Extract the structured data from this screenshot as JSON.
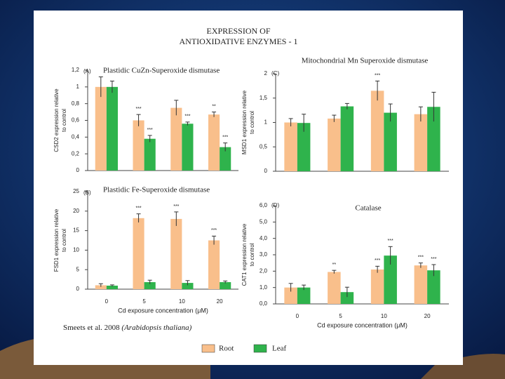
{
  "title": [
    "EXPRESSION OF",
    "ANTIOXIDATIVE ENZYMES - 1"
  ],
  "citation": "Smeets et al. 2008",
  "species": "(Arabidopsis thaliana)",
  "chart_data": [
    {
      "type": "bar",
      "label": "(A)",
      "title": "Plastidic CuZn-Superoxide dismutase",
      "ylabel": [
        "CSD2 expression relative",
        "to control"
      ],
      "categories": [
        null,
        null,
        null,
        null
      ],
      "ylim": [
        0,
        1.2
      ],
      "yticks": [
        0,
        {
          "value": 0.2,
          "label": "0,2"
        },
        {
          "value": 0.4,
          "label": "0,4"
        },
        {
          "value": 0.6,
          "label": "0,6"
        },
        {
          "value": 0.8,
          "label": "0,8"
        },
        1,
        {
          "value": 1.2,
          "label": "1,2"
        }
      ],
      "series": [
        {
          "name": "Root",
          "color": "#f9bf8b",
          "values": [
            1,
            0.6,
            0.75,
            0.67
          ],
          "errors": [
            0.12,
            0.07,
            0.09,
            0.03
          ],
          "annotations": [
            null,
            "***",
            null,
            "**"
          ]
        },
        {
          "name": "Leaf",
          "color": "#2fb34c",
          "values": [
            1,
            0.38,
            0.56,
            0.28
          ],
          "errors": [
            0.07,
            0.04,
            0.02,
            0.05
          ],
          "annotations": [
            null,
            "***",
            "***",
            "***"
          ]
        }
      ]
    },
    {
      "type": "bar",
      "label": "(B)",
      "title": "Plastidic Fe-Superoxide dismutase",
      "ylabel": [
        "FSD1 expression relative",
        "to control"
      ],
      "xlabel": "Cd exposure concentration (μM)",
      "categories": [
        "0",
        "5",
        "10",
        "20"
      ],
      "ylim": [
        0,
        25
      ],
      "yticks": [
        0,
        5,
        10,
        15,
        20,
        25
      ],
      "series": [
        {
          "name": "Root",
          "color": "#f9bf8b",
          "values": [
            1,
            18.2,
            18,
            12.5
          ],
          "errors": [
            0.4,
            1.1,
            1.8,
            1.1
          ],
          "annotations": [
            null,
            "***",
            "***",
            "***"
          ]
        },
        {
          "name": "Leaf",
          "color": "#2fb34c",
          "values": [
            0.9,
            1.8,
            1.6,
            1.8
          ],
          "errors": [
            0.2,
            0.5,
            0.6,
            0.3
          ],
          "annotations": [
            null,
            null,
            null,
            null
          ]
        }
      ]
    },
    {
      "type": "bar",
      "label": "(C)",
      "title": "Mitochondrial Mn Superoxide dismutase",
      "ylabel": [
        "MSD1 expression relative",
        "to control"
      ],
      "categories": [
        null,
        null,
        null,
        null
      ],
      "ylim": [
        0,
        2
      ],
      "yticks": [
        0,
        {
          "value": 0.5,
          "label": "0,5"
        },
        1,
        {
          "value": 1.5,
          "label": "1,5"
        },
        2
      ],
      "series": [
        {
          "name": "Root",
          "color": "#f9bf8b",
          "values": [
            1,
            1.08,
            1.65,
            1.17
          ],
          "errors": [
            0.08,
            0.07,
            0.2,
            0.15
          ],
          "annotations": [
            null,
            null,
            "***",
            null
          ]
        },
        {
          "name": "Leaf",
          "color": "#2fb34c",
          "values": [
            0.99,
            1.33,
            1.2,
            1.32
          ],
          "errors": [
            0.18,
            0.06,
            0.18,
            0.3
          ],
          "annotations": [
            null,
            null,
            null,
            null
          ]
        }
      ]
    },
    {
      "type": "bar",
      "label": "(D)",
      "title": "Catalase",
      "ylabel": [
        "CAT1 expression relative",
        "to control"
      ],
      "xlabel": "Cd exposure concentration (μM)",
      "categories": [
        "0",
        "5",
        "10",
        "20"
      ],
      "ylim": [
        0,
        6
      ],
      "yticks": [
        {
          "value": 0,
          "label": "0,0"
        },
        {
          "value": 1,
          "label": "1,0"
        },
        {
          "value": 2,
          "label": "2,0"
        },
        {
          "value": 3,
          "label": "3,0"
        },
        {
          "value": 4,
          "label": "4,0"
        },
        {
          "value": 5,
          "label": "5,0"
        },
        {
          "value": 6,
          "label": "6,0"
        }
      ],
      "series": [
        {
          "name": "Root",
          "color": "#f9bf8b",
          "values": [
            1,
            1.95,
            2.1,
            2.35
          ],
          "errors": [
            0.25,
            0.1,
            0.2,
            0.15
          ],
          "annotations": [
            null,
            "**",
            "***",
            "***"
          ]
        },
        {
          "name": "Leaf",
          "color": "#2fb34c",
          "values": [
            1,
            0.72,
            2.95,
            2.05
          ],
          "errors": [
            0.15,
            0.3,
            0.55,
            0.35
          ],
          "annotations": [
            null,
            null,
            "***",
            "***"
          ]
        }
      ]
    }
  ]
}
